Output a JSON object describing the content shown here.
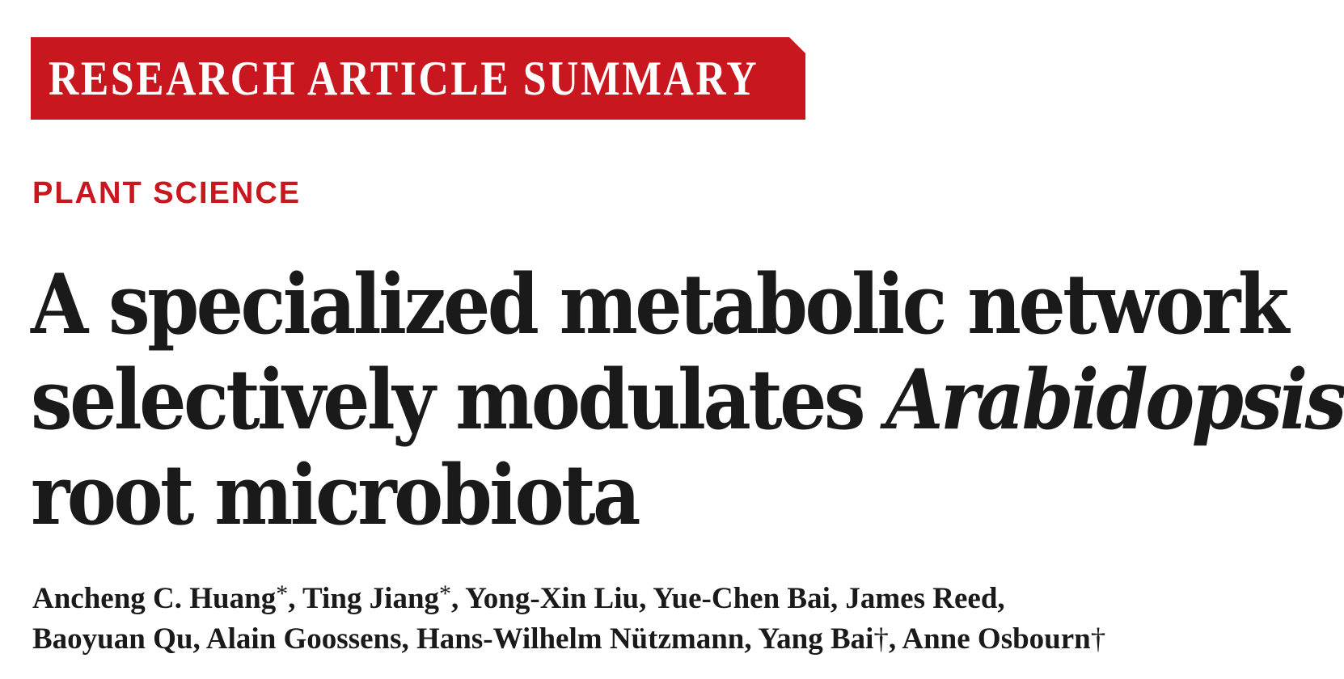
{
  "banner": {
    "label": "RESEARCH ARTICLE SUMMARY",
    "color": "#c8171e"
  },
  "section": {
    "label": "PLANT SCIENCE",
    "color": "#c8171e"
  },
  "title": {
    "line1": "A specialized metabolic network",
    "line2_plain": "selectively modulates ",
    "line2_italic": "Arabidopsis",
    "line3": "root microbiota"
  },
  "authors": {
    "line1": [
      {
        "name": "Ancheng C. Huang",
        "mark": "*",
        "sep": ", "
      },
      {
        "name": "Ting Jiang",
        "mark": "*",
        "sep": ", "
      },
      {
        "name": "Yong-Xin Liu",
        "mark": "",
        "sep": ", "
      },
      {
        "name": "Yue-Chen Bai",
        "mark": "",
        "sep": ", "
      },
      {
        "name": "James Reed",
        "mark": "",
        "sep": ","
      }
    ],
    "line2": [
      {
        "name": "Baoyuan Qu",
        "mark": "",
        "sep": ", "
      },
      {
        "name": "Alain Goossens",
        "mark": "",
        "sep": ", "
      },
      {
        "name": "Hans-Wilhelm Nützmann",
        "mark": "",
        "sep": ", "
      },
      {
        "name": "Yang Bai",
        "mark": "†",
        "sep": ", "
      },
      {
        "name": "Anne Osbourn",
        "mark": "†",
        "sep": ""
      }
    ]
  }
}
